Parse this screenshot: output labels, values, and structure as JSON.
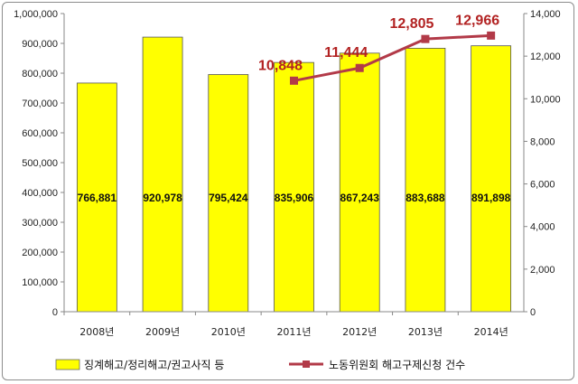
{
  "chart_data": {
    "type": "bar+line",
    "categories": [
      "2008년",
      "2009년",
      "2010년",
      "2011년",
      "2012년",
      "2013년",
      "2014년"
    ],
    "series": [
      {
        "name": "징계해고/정리해고/권고사직 등",
        "type": "bar",
        "axis": "left",
        "values": [
          766881,
          920978,
          795424,
          835906,
          867243,
          883688,
          891898
        ],
        "labels": [
          "766,881",
          "920,978",
          "795,424",
          "835,906",
          "867,243",
          "883,688",
          "891,898"
        ],
        "color": "#ffff00"
      },
      {
        "name": "노동위원회 해고구제신청 건수",
        "type": "line",
        "axis": "right",
        "values": [
          null,
          null,
          null,
          10848,
          11444,
          12805,
          12966
        ],
        "labels": [
          "",
          "",
          "",
          "10,848",
          "11,444",
          "12,805",
          "12,966"
        ],
        "color": "#b23a48"
      }
    ],
    "y_left": {
      "range": [
        0,
        1000000
      ],
      "ticks": [
        "0",
        "100,000",
        "200,000",
        "300,000",
        "400,000",
        "500,000",
        "600,000",
        "700,000",
        "800,000",
        "900,000",
        "1,000,000"
      ]
    },
    "y_right": {
      "range": [
        0,
        14000
      ],
      "ticks": [
        "0",
        "2,000",
        "4,000",
        "6,000",
        "8,000",
        "10,000",
        "12,000",
        "14,000"
      ]
    },
    "grid": false,
    "legend_position": "bottom"
  }
}
